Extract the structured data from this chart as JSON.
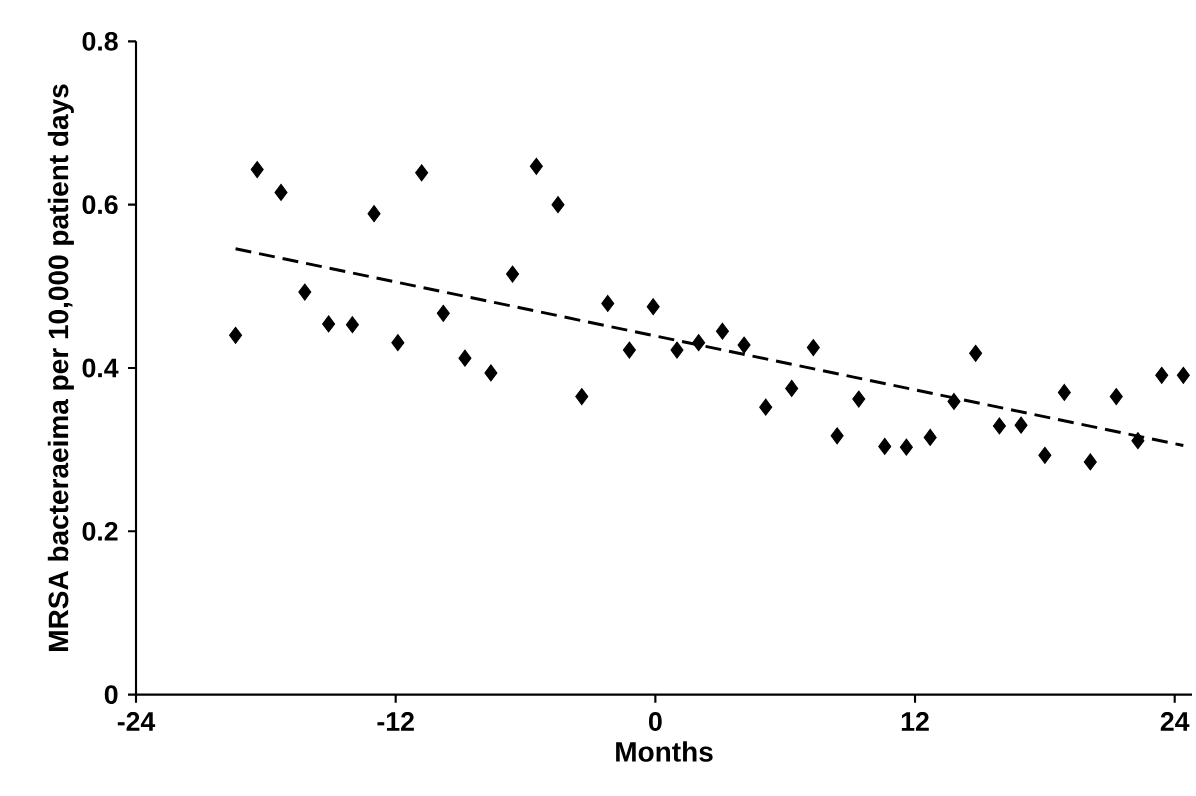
{
  "chart_data": {
    "type": "scatter",
    "xlabel": "Months",
    "ylabel": "MRSA bacteraeima per 10,000 patient days",
    "xlim": [
      -24,
      24.8
    ],
    "xticks": [
      -24,
      -12,
      0,
      12,
      24
    ],
    "ylim": [
      0,
      0.8
    ],
    "yticks": [
      0,
      0.2,
      0.4,
      0.6,
      0.8
    ],
    "grid": false,
    "marker": "diamond",
    "series": [
      {
        "color": "#000000",
        "x": [
          -19.4,
          -18.4,
          -17.3,
          -16.2,
          -15.1,
          -14.0,
          -13.0,
          -11.9,
          -10.8,
          -9.8,
          -8.8,
          -7.6,
          -6.6,
          -5.5,
          -4.5,
          -3.4,
          -2.2,
          -1.2,
          -0.1,
          1.0,
          2.0,
          3.1,
          4.1,
          5.1,
          6.3,
          7.3,
          8.4,
          9.4,
          10.6,
          11.6,
          12.7,
          13.8,
          14.8,
          15.9,
          16.9,
          18.0,
          18.9,
          20.1,
          21.3,
          22.3,
          23.4,
          24.4
        ],
        "values": [
          0.44,
          0.643,
          0.615,
          0.493,
          0.454,
          0.453,
          0.589,
          0.431,
          0.639,
          0.467,
          0.412,
          0.394,
          0.515,
          0.647,
          0.6,
          0.365,
          0.479,
          0.422,
          0.475,
          0.422,
          0.431,
          0.445,
          0.428,
          0.352,
          0.375,
          0.425,
          0.317,
          0.362,
          0.304,
          0.303,
          0.315,
          0.359,
          0.418,
          0.329,
          0.33,
          0.293,
          0.37,
          0.285,
          0.365,
          0.311,
          0.391,
          0.391
        ]
      },
      {
        "type": "line",
        "color": "#000000",
        "line_style": "dashed",
        "marker": "none",
        "x": [
          -19.4,
          24.4
        ],
        "values": [
          0.546,
          0.305
        ]
      }
    ]
  }
}
